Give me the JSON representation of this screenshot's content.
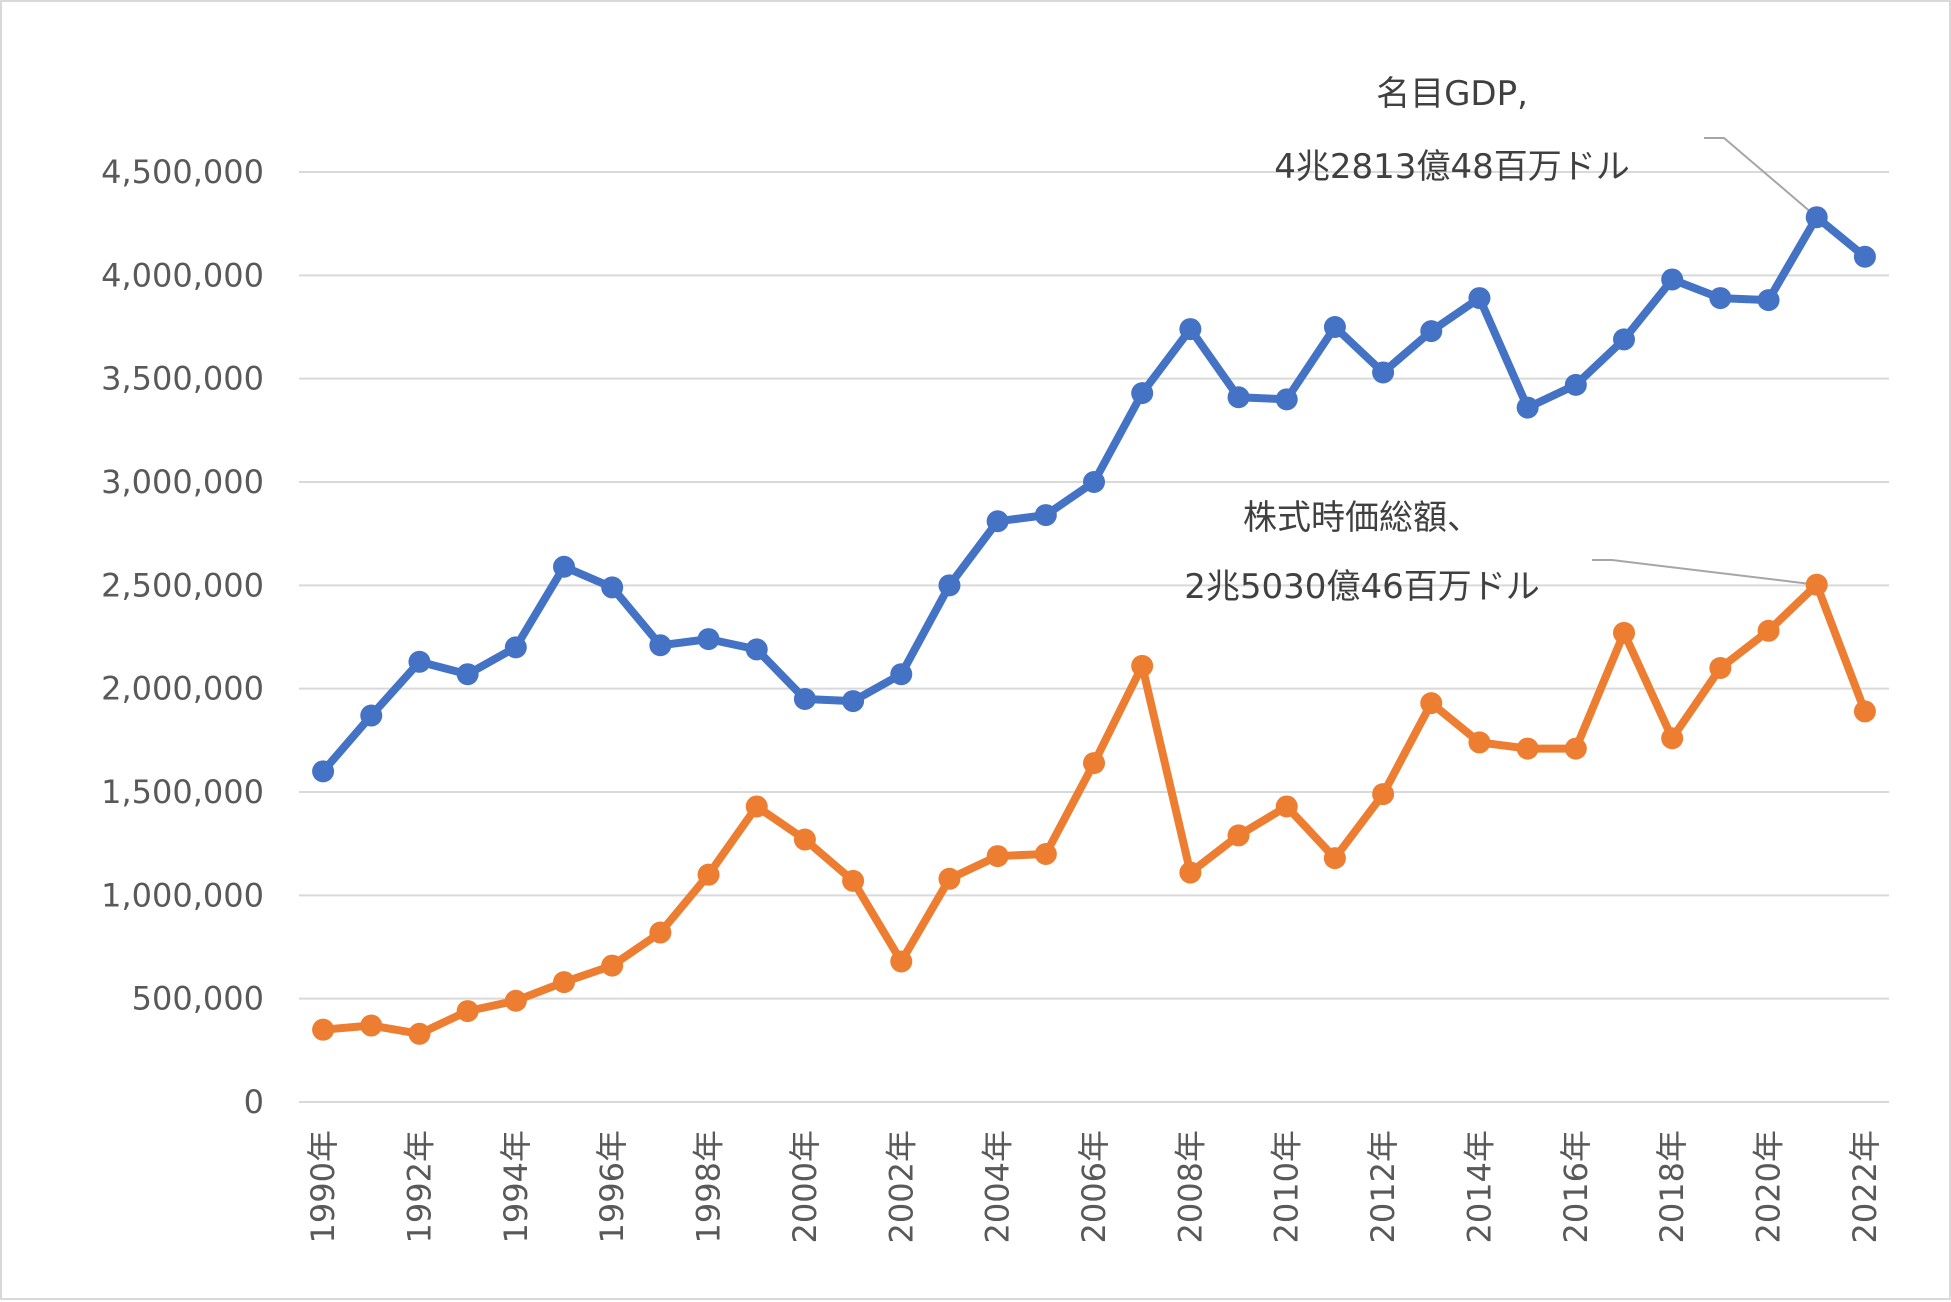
{
  "chart_data": {
    "type": "line",
    "title": "",
    "xlabel": "",
    "ylabel": "",
    "ylim": [
      0,
      4500000
    ],
    "y_ticks": [
      "0",
      "500,000",
      "1,000,000",
      "1,500,000",
      "2,000,000",
      "2,500,000",
      "3,000,000",
      "3,500,000",
      "4,000,000",
      "4,500,000"
    ],
    "categories": [
      "1990年",
      "1991年",
      "1992年",
      "1993年",
      "1994年",
      "1995年",
      "1996年",
      "1997年",
      "1998年",
      "1999年",
      "2000年",
      "2001年",
      "2002年",
      "2003年",
      "2004年",
      "2005年",
      "2006年",
      "2007年",
      "2008年",
      "2009年",
      "2010年",
      "2011年",
      "2012年",
      "2013年",
      "2014年",
      "2015年",
      "2016年",
      "2017年",
      "2018年",
      "2019年",
      "2020年",
      "2021年",
      "2022年"
    ],
    "x_tick_labels": [
      "1990年",
      "",
      "1992年",
      "",
      "1994年",
      "",
      "1996年",
      "",
      "1998年",
      "",
      "2000年",
      "",
      "2002年",
      "",
      "2004年",
      "",
      "2006年",
      "",
      "2008年",
      "",
      "2010年",
      "",
      "2012年",
      "",
      "2014年",
      "",
      "2016年",
      "",
      "2018年",
      "",
      "2020年",
      "",
      "2022年"
    ],
    "grid": true,
    "legend": "none",
    "series": [
      {
        "color": "#4472c4",
        "values": [
          1600000,
          1870000,
          2130000,
          2070000,
          2200000,
          2590000,
          2490000,
          2210000,
          2240000,
          2190000,
          1950000,
          1940000,
          2070000,
          2500000,
          2810000,
          2840000,
          3000000,
          3430000,
          3740000,
          3410000,
          3400000,
          3750000,
          3530000,
          3730000,
          3890000,
          3360000,
          3470000,
          3690000,
          3980000,
          3890000,
          3880000,
          4281348,
          4090000
        ]
      },
      {
        "color": "#ed7d31",
        "values": [
          350000,
          370000,
          330000,
          440000,
          490000,
          580000,
          660000,
          820000,
          1100000,
          1430000,
          1270000,
          1070000,
          680000,
          1080000,
          1190000,
          1200000,
          1640000,
          2110000,
          1110000,
          1290000,
          1430000,
          1180000,
          1490000,
          1930000,
          1740000,
          1710000,
          1710000,
          2270000,
          1760000,
          2100000,
          2280000,
          2503046,
          1890000
        ]
      }
    ],
    "annotations": [
      {
        "lines": [
          "名目GDP,",
          "4兆2813億48百万ドル"
        ],
        "series_index": 0,
        "point_index": 31
      },
      {
        "lines": [
          "株式時価総額、",
          "2兆5030億46百万ドル"
        ],
        "series_index": 1,
        "point_index": 31
      }
    ]
  }
}
